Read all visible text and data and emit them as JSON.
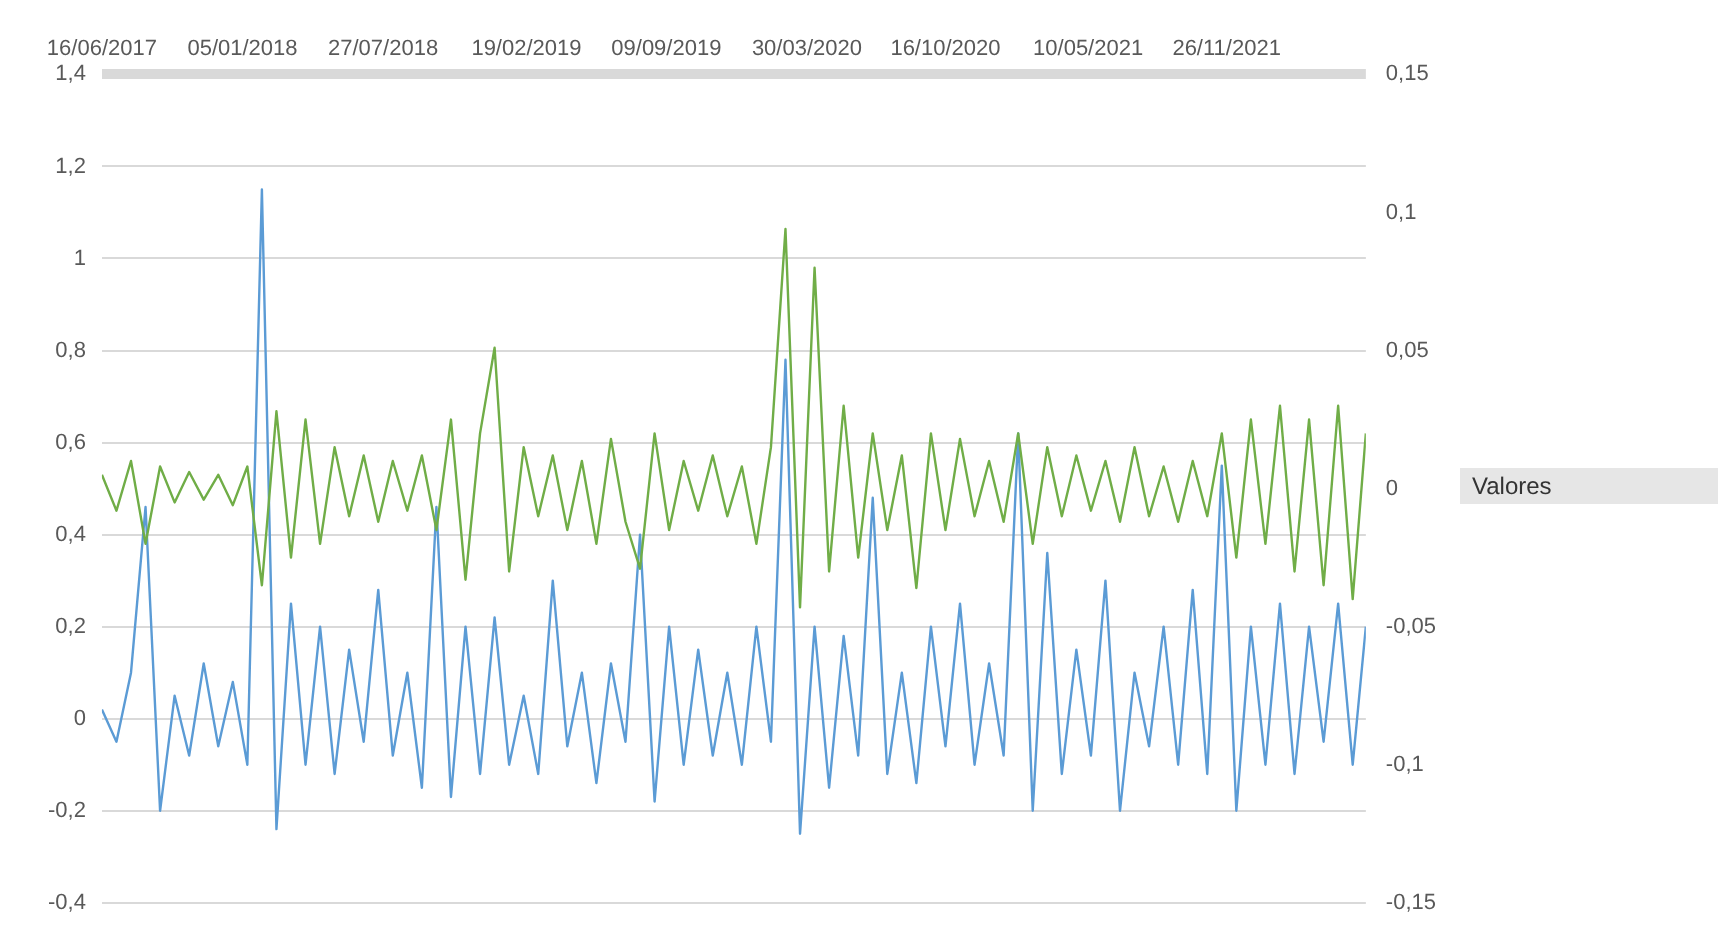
{
  "chart_data": {
    "type": "line",
    "legend_title": "Valores",
    "x": [
      "2017-06-16",
      "2017-07-07",
      "2017-07-28",
      "2017-08-18",
      "2017-09-08",
      "2017-09-29",
      "2017-10-20",
      "2017-11-10",
      "2017-12-01",
      "2017-12-22",
      "2018-01-12",
      "2018-02-02",
      "2018-02-23",
      "2018-03-16",
      "2018-04-06",
      "2018-04-27",
      "2018-05-18",
      "2018-06-08",
      "2018-06-29",
      "2018-07-20",
      "2018-08-10",
      "2018-08-31",
      "2018-09-21",
      "2018-10-12",
      "2018-11-02",
      "2018-11-23",
      "2018-12-14",
      "2019-01-04",
      "2019-01-25",
      "2019-02-15",
      "2019-03-08",
      "2019-03-29",
      "2019-04-19",
      "2019-05-10",
      "2019-05-31",
      "2019-06-21",
      "2019-07-12",
      "2019-08-02",
      "2019-08-23",
      "2019-09-13",
      "2019-10-04",
      "2019-10-25",
      "2019-11-15",
      "2019-12-06",
      "2019-12-27",
      "2020-01-17",
      "2020-02-07",
      "2020-02-28",
      "2020-03-20",
      "2020-04-10",
      "2020-05-01",
      "2020-05-22",
      "2020-06-12",
      "2020-07-03",
      "2020-07-24",
      "2020-08-14",
      "2020-09-04",
      "2020-09-25",
      "2020-10-16",
      "2020-11-06",
      "2020-11-27",
      "2020-12-18",
      "2021-01-08",
      "2021-01-29",
      "2021-02-19",
      "2021-03-12",
      "2021-04-02",
      "2021-04-23",
      "2021-05-14",
      "2021-06-04",
      "2021-06-25",
      "2021-07-16",
      "2021-08-06",
      "2021-08-27",
      "2021-09-17",
      "2021-10-08",
      "2021-10-29",
      "2021-11-19",
      "2021-12-10",
      "2021-12-31",
      "2022-01-21",
      "2022-02-11",
      "2022-03-04",
      "2022-03-25",
      "2022-04-15",
      "2022-05-06",
      "2022-05-27",
      "2022-06-15"
    ],
    "series": [
      {
        "color": "#70ad47",
        "axis": "y2",
        "values": [
          0.005,
          -0.008,
          0.01,
          -0.02,
          0.008,
          -0.005,
          0.006,
          -0.004,
          0.005,
          -0.006,
          0.008,
          -0.035,
          0.028,
          -0.025,
          0.025,
          -0.02,
          0.015,
          -0.01,
          0.012,
          -0.012,
          0.01,
          -0.008,
          0.012,
          -0.015,
          0.025,
          -0.033,
          0.02,
          0.051,
          -0.03,
          0.015,
          -0.01,
          0.012,
          -0.015,
          0.01,
          -0.02,
          0.018,
          -0.012,
          -0.029,
          0.02,
          -0.015,
          0.01,
          -0.008,
          0.012,
          -0.01,
          0.008,
          -0.02,
          0.015,
          0.094,
          -0.043,
          0.08,
          -0.03,
          0.03,
          -0.025,
          0.02,
          -0.015,
          0.012,
          -0.036,
          0.02,
          -0.015,
          0.018,
          -0.01,
          0.01,
          -0.012,
          0.02,
          -0.02,
          0.015,
          -0.01,
          0.012,
          -0.008,
          0.01,
          -0.012,
          0.015,
          -0.01,
          0.008,
          -0.012,
          0.01,
          -0.01,
          0.02,
          -0.025,
          0.025,
          -0.02,
          0.03,
          -0.03,
          0.025,
          -0.035,
          0.03,
          -0.04,
          0.02
        ]
      },
      {
        "color": "#5b9bd5",
        "values": [
          0.02,
          -0.05,
          0.1,
          0.46,
          -0.2,
          0.05,
          -0.08,
          0.12,
          -0.06,
          0.08,
          -0.1,
          1.15,
          -0.24,
          0.25,
          -0.1,
          0.2,
          -0.12,
          0.15,
          -0.05,
          0.28,
          -0.08,
          0.1,
          -0.15,
          0.46,
          -0.17,
          0.2,
          -0.12,
          0.22,
          -0.1,
          0.05,
          -0.12,
          0.3,
          -0.06,
          0.1,
          -0.14,
          0.12,
          -0.05,
          0.4,
          -0.18,
          0.2,
          -0.1,
          0.15,
          -0.08,
          0.1,
          -0.1,
          0.2,
          -0.05,
          0.78,
          -0.25,
          0.2,
          -0.15,
          0.18,
          -0.08,
          0.48,
          -0.12,
          0.1,
          -0.14,
          0.2,
          -0.06,
          0.25,
          -0.1,
          0.12,
          -0.08,
          0.62,
          -0.2,
          0.36,
          -0.12,
          0.15,
          -0.08,
          0.3,
          -0.2,
          0.1,
          -0.06,
          0.2,
          -0.1,
          0.28,
          -0.12,
          0.55,
          -0.2,
          0.2,
          -0.1,
          0.25,
          -0.12,
          0.2,
          -0.05,
          0.25,
          -0.1,
          0.2
        ]
      }
    ],
    "xlim": [
      "2017-06-16",
      "2022-06-15"
    ],
    "xticks": [
      {
        "value": "2017-06-16",
        "label": "16/06/2017"
      },
      {
        "value": "2018-01-05",
        "label": "05/01/2018"
      },
      {
        "value": "2018-07-27",
        "label": "27/07/2018"
      },
      {
        "value": "2019-02-19",
        "label": "19/02/2019"
      },
      {
        "value": "2019-09-09",
        "label": "09/09/2019"
      },
      {
        "value": "2020-03-30",
        "label": "30/03/2020"
      },
      {
        "value": "2020-10-16",
        "label": "16/10/2020"
      },
      {
        "value": "2021-05-10",
        "label": "10/05/2021"
      },
      {
        "value": "2021-11-26",
        "label": "26/11/2021"
      }
    ],
    "ylim": [
      -0.4,
      1.4
    ],
    "yticks": [
      {
        "value": -0.4,
        "label": "-0,4"
      },
      {
        "value": -0.2,
        "label": "-0,2"
      },
      0,
      {
        "value": 0.2,
        "label": "0,2"
      },
      {
        "value": 0.4,
        "label": "0,4"
      },
      {
        "value": 0.6,
        "label": "0,6"
      },
      {
        "value": 0.8,
        "label": "0,8"
      },
      1,
      {
        "value": 1.2,
        "label": "1,2"
      },
      {
        "value": 1.4,
        "label": "1,4"
      }
    ],
    "y2lim": [
      -0.15,
      0.15
    ],
    "y2ticks": [
      {
        "value": -0.15,
        "label": "-0,15"
      },
      {
        "value": -0.1,
        "label": "-0,1"
      },
      {
        "value": -0.05,
        "label": "-0,05"
      },
      0,
      {
        "value": 0.05,
        "label": "0,05"
      },
      {
        "value": 0.1,
        "label": "0,1"
      },
      {
        "value": 0.15,
        "label": "0,15"
      }
    ],
    "grid": "y",
    "marker": "none",
    "line_style": "solid"
  }
}
